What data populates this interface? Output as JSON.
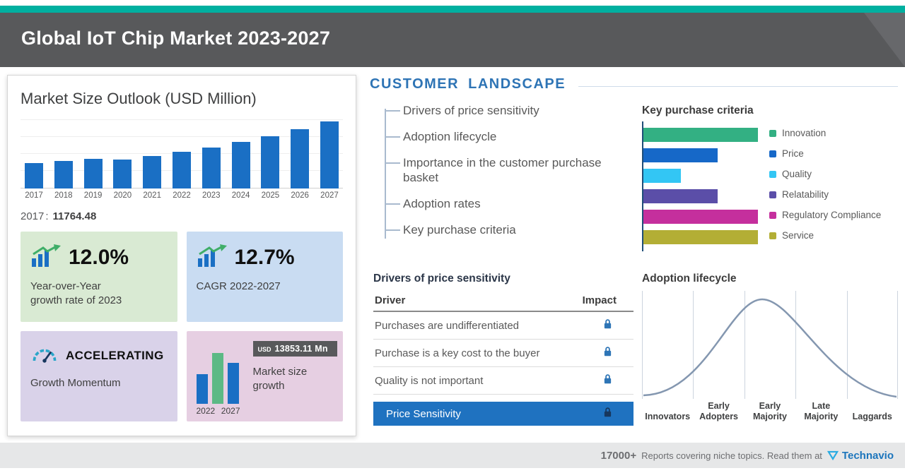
{
  "header": {
    "title": "Global IoT Chip Market 2023-2027"
  },
  "market_size": {
    "title": "Market Size Outlook (USD Million)",
    "base_year_label": "2017",
    "separator": ":",
    "base_year_value": "11764.48"
  },
  "stat_cards": {
    "yoy": {
      "value": "12.0%",
      "line1": "Year-over-Year",
      "line2": "growth rate of 2023"
    },
    "cagr": {
      "value": "12.7%",
      "label": "CAGR 2022-2027"
    },
    "momentum": {
      "value": "ACCELERATING",
      "label": "Growth Momentum"
    },
    "growth": {
      "badge_prefix": "USD",
      "badge_value": "13853.11 Mn",
      "label": "Market size growth",
      "year_start": "2022",
      "year_end": "2027"
    }
  },
  "customer_landscape": {
    "title": "CUSTOMER LANDSCAPE",
    "items": [
      "Drivers of price sensitivity",
      "Adoption lifecycle",
      "Importance in the customer purchase basket",
      "Adoption rates",
      "Key purchase criteria"
    ]
  },
  "key_purchase": {
    "title": "Key purchase criteria"
  },
  "price_sensitivity": {
    "title": "Drivers of price sensitivity",
    "col_driver": "Driver",
    "col_impact": "Impact",
    "rows": [
      "Purchases are undifferentiated",
      "Purchase is a key cost to the buyer",
      "Quality is not important"
    ],
    "highlight_row": "Price Sensitivity"
  },
  "adoption": {
    "title": "Adoption lifecycle"
  },
  "footer": {
    "count": "17000+",
    "text": "Reports covering niche topics. Read them at",
    "brand": "Technavio"
  },
  "colors": {
    "accent_teal": "#00b0a0",
    "header_gray": "#58595b",
    "primary_blue": "#1a6fc4",
    "heading_blue": "#2e74b5",
    "highlight_row_blue": "#1f72c0",
    "card_green": "#d9ead3",
    "card_blue": "#c9dcf2",
    "card_purple": "#d9d2e9",
    "card_pink": "#e6cfe2",
    "lock_blue": "#2e75b6",
    "lock_dark": "#17375e",
    "technavio_blue": "#1c75bc"
  },
  "chart_data": [
    {
      "id": "market_size_outlook",
      "type": "bar",
      "title": "Market Size Outlook (USD Million)",
      "categories": [
        "2017",
        "2018",
        "2019",
        "2020",
        "2021",
        "2022",
        "2023",
        "2024",
        "2025",
        "2026",
        "2027"
      ],
      "values": [
        11764.48,
        12600,
        13500,
        13400,
        14800,
        16950,
        18984,
        21300,
        23900,
        27200,
        30803
      ],
      "labeled_point": {
        "category": "2017",
        "value": 11764.48
      },
      "bar_color": "#1a6fc4",
      "xlabel": "",
      "ylabel": "USD Million",
      "grid": true
    },
    {
      "id": "key_purchase_criteria",
      "type": "bar",
      "orientation": "horizontal",
      "title": "Key purchase criteria",
      "categories": [
        "Innovation",
        "Price",
        "Quality",
        "Relatability",
        "Regulatory Compliance",
        "Service"
      ],
      "values": [
        100,
        65,
        33,
        65,
        100,
        100
      ],
      "colors": [
        "#33b083",
        "#1668c8",
        "#33c6f4",
        "#5b4ea8",
        "#c52f9d",
        "#b3ae35"
      ],
      "legend_position": "right"
    },
    {
      "id": "adoption_lifecycle",
      "type": "area",
      "shape": "bell-curve",
      "title": "Adoption lifecycle",
      "stages": [
        "Innovators",
        "Early Adopters",
        "Early Majority",
        "Late Majority",
        "Laggards"
      ]
    }
  ]
}
